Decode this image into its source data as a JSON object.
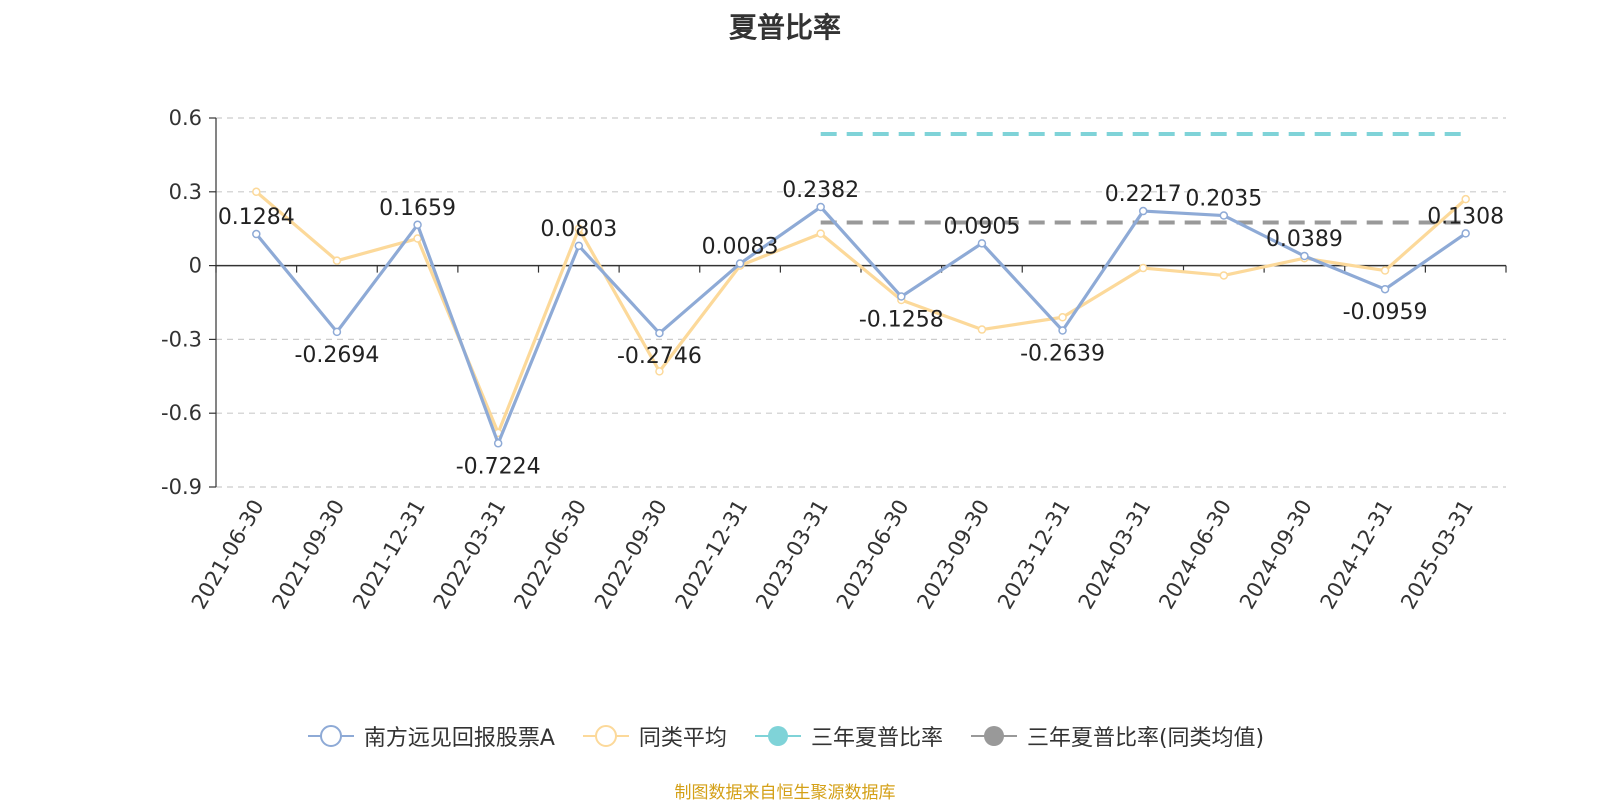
{
  "chart_data": {
    "type": "line",
    "title": "夏普比率",
    "categories": [
      "2021-06-30",
      "2021-09-30",
      "2021-12-31",
      "2022-03-31",
      "2022-06-30",
      "2022-09-30",
      "2022-12-31",
      "2023-03-31",
      "2023-06-30",
      "2023-09-30",
      "2023-12-31",
      "2024-03-31",
      "2024-06-30",
      "2024-09-30",
      "2024-12-31",
      "2025-03-31"
    ],
    "yticks": [
      "0.6",
      "0.3",
      "0",
      "-0.3",
      "-0.6",
      "-0.9"
    ],
    "ylim": [
      -0.9,
      0.6
    ],
    "grid": true,
    "legend_position": "bottom",
    "series": [
      {
        "name": "南方远见回报股票A",
        "color": "#8eaad6",
        "values": [
          0.1284,
          -0.2694,
          0.1659,
          -0.7224,
          0.0803,
          -0.2746,
          0.0083,
          0.2382,
          -0.1258,
          0.0905,
          -0.2639,
          0.2217,
          0.2035,
          0.0389,
          -0.0959,
          0.1308
        ],
        "labels": [
          "0.1284",
          "-0.2694",
          "0.1659",
          "-0.7224",
          "0.0803",
          "-0.2746",
          "0.0083",
          "0.2382",
          "-0.1258",
          "0.0905",
          "-0.2639",
          "0.2217",
          "0.2035",
          "0.0389",
          "-0.0959",
          "0.1308"
        ]
      },
      {
        "name": "同类平均",
        "color": "#fcd99a",
        "values": [
          0.3,
          0.02,
          0.11,
          -0.68,
          0.15,
          -0.43,
          0.0,
          0.13,
          -0.14,
          -0.26,
          -0.21,
          -0.01,
          -0.04,
          0.03,
          -0.02,
          0.27
        ]
      }
    ],
    "reference_lines": [
      {
        "name": "三年夏普比率",
        "color": "#7fd3d8",
        "value": 0.535,
        "from": "2023-03-31",
        "to": "2025-03-31"
      },
      {
        "name": "三年夏普比率(同类均值)",
        "color": "#999999",
        "value": 0.175,
        "from": "2023-03-31",
        "to": "2025-03-31"
      }
    ]
  },
  "legend": [
    {
      "name": "南方远见回报股票A",
      "color": "#8eaad6",
      "style": "hollow"
    },
    {
      "name": "同类平均",
      "color": "#fcd99a",
      "style": "hollow"
    },
    {
      "name": "三年夏普比率",
      "color": "#7fd3d8",
      "style": "filled"
    },
    {
      "name": "三年夏普比率(同类均值)",
      "color": "#999999",
      "style": "filled"
    }
  ],
  "source": "制图数据来自恒生聚源数据库"
}
